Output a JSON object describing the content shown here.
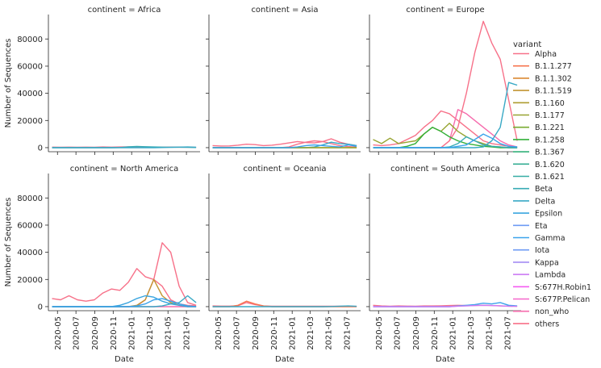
{
  "chart_data": {
    "type": "line",
    "facet_label_prefix": "continent = ",
    "facets": [
      "Africa",
      "Asia",
      "Europe",
      "North America",
      "Oceania",
      "South America"
    ],
    "xlabel": "Date",
    "ylabel": "Number of Sequences",
    "x_ticks": [
      "2020-05",
      "2020-07",
      "2020-09",
      "2020-11",
      "2021-01",
      "2021-03",
      "2021-05",
      "2021-07"
    ],
    "y_ticks": [
      0,
      20000,
      40000,
      60000,
      80000
    ],
    "ylim": [
      -3000,
      98000
    ],
    "x": [
      "2020-04-13",
      "2020-05-11",
      "2020-06-08",
      "2020-07-06",
      "2020-08-03",
      "2020-08-31",
      "2020-09-28",
      "2020-10-26",
      "2020-11-23",
      "2020-12-21",
      "2021-01-18",
      "2021-02-15",
      "2021-03-15",
      "2021-04-12",
      "2021-05-10",
      "2021-06-07",
      "2021-07-05",
      "2021-08-02"
    ],
    "legend_title": "variant",
    "legend_placement": "right",
    "variants": [
      {
        "name": "Alpha",
        "color": "#f77189"
      },
      {
        "name": "B.1.1.277",
        "color": "#f7754f"
      },
      {
        "name": "B.1.1.302",
        "color": "#dc8932"
      },
      {
        "name": "B.1.1.519",
        "color": "#c39532"
      },
      {
        "name": "B.1.160",
        "color": "#ae9d31"
      },
      {
        "name": "B.1.177",
        "color": "#97a431"
      },
      {
        "name": "B.1.221",
        "color": "#77ab31"
      },
      {
        "name": "B.1.258",
        "color": "#33b039"
      },
      {
        "name": "B.1.367",
        "color": "#33b07a"
      },
      {
        "name": "B.1.620",
        "color": "#35ae93"
      },
      {
        "name": "B.1.621",
        "color": "#36ada4"
      },
      {
        "name": "Beta",
        "color": "#37abb4"
      },
      {
        "name": "Delta",
        "color": "#38a9c5"
      },
      {
        "name": "Epsilon",
        "color": "#3aa5df"
      },
      {
        "name": "Eta",
        "color": "#6e9bf4"
      },
      {
        "name": "Gamma",
        "color": "#3ba3ec"
      },
      {
        "name": "Iota",
        "color": "#6e9bf4"
      },
      {
        "name": "Kappa",
        "color": "#a48cf4"
      },
      {
        "name": "Lambda",
        "color": "#cc7af4"
      },
      {
        "name": "S:677H.Robin1",
        "color": "#f45cf2"
      },
      {
        "name": "S:677P.Pelican",
        "color": "#f565cc"
      },
      {
        "name": "non_who",
        "color": "#f66bad"
      },
      {
        "name": "others",
        "color": "#f77189"
      }
    ],
    "series": [
      {
        "facet": "Africa",
        "variant": "others",
        "values": [
          400,
          300,
          400,
          300,
          400,
          300,
          500,
          400,
          500,
          600,
          400,
          500,
          400,
          300,
          400,
          300,
          300,
          200
        ]
      },
      {
        "facet": "Africa",
        "variant": "Beta",
        "values": [
          0,
          0,
          0,
          0,
          0,
          0,
          0,
          0,
          100,
          600,
          900,
          700,
          500,
          400,
          300,
          300,
          200,
          100
        ]
      },
      {
        "facet": "Africa",
        "variant": "Delta",
        "values": [
          0,
          0,
          0,
          0,
          0,
          0,
          0,
          0,
          0,
          0,
          0,
          0,
          0,
          100,
          200,
          400,
          500,
          300
        ]
      },
      {
        "facet": "Asia",
        "variant": "others",
        "values": [
          1500,
          1200,
          1300,
          1800,
          2500,
          2200,
          1500,
          1800,
          2500,
          3500,
          4500,
          3800,
          3500,
          4500,
          6500,
          4000,
          2500,
          1500
        ]
      },
      {
        "facet": "Asia",
        "variant": "Alpha",
        "values": [
          0,
          0,
          0,
          0,
          0,
          0,
          0,
          0,
          0,
          500,
          2500,
          4000,
          5000,
          4500,
          3000,
          1500,
          800,
          400
        ]
      },
      {
        "facet": "Asia",
        "variant": "B.1.1.519",
        "values": [
          0,
          0,
          0,
          0,
          0,
          0,
          0,
          0,
          0,
          0,
          0,
          0,
          0,
          0,
          0,
          0,
          0,
          0
        ]
      },
      {
        "facet": "Asia",
        "variant": "Delta",
        "values": [
          0,
          0,
          0,
          0,
          0,
          0,
          0,
          0,
          0,
          0,
          0,
          0,
          500,
          2000,
          4000,
          3000,
          2500,
          1500
        ]
      },
      {
        "facet": "Asia",
        "variant": "B.1.177",
        "values": [
          0,
          0,
          0,
          0,
          0,
          0,
          0,
          0,
          0,
          0,
          0,
          0,
          0,
          0,
          0,
          0,
          0,
          0
        ]
      },
      {
        "facet": "Asia",
        "variant": "Gamma",
        "values": [
          0,
          0,
          0,
          0,
          0,
          0,
          0,
          0,
          0,
          0,
          500,
          1500,
          2000,
          1500,
          1000,
          500,
          2000,
          1000
        ]
      },
      {
        "facet": "Europe",
        "variant": "others",
        "values": [
          2000,
          1500,
          2000,
          3000,
          6000,
          9000,
          15000,
          20000,
          27000,
          25000,
          20000,
          15000,
          10000,
          5000,
          3000,
          2000,
          1000,
          500
        ]
      },
      {
        "facet": "Europe",
        "variant": "non_who",
        "values": [
          0,
          0,
          0,
          0,
          0,
          0,
          0,
          0,
          0,
          5000,
          28000,
          25000,
          20000,
          15000,
          10000,
          5000,
          2000,
          500
        ]
      },
      {
        "facet": "Europe",
        "variant": "Alpha",
        "values": [
          0,
          0,
          0,
          0,
          0,
          0,
          0,
          0,
          0,
          5000,
          15000,
          40000,
          70000,
          93000,
          77000,
          65000,
          35000,
          5000
        ]
      },
      {
        "facet": "Europe",
        "variant": "B.1.177",
        "values": [
          6000,
          3000,
          7000,
          3000,
          4000,
          5000,
          10000,
          15000,
          12000,
          18000,
          12000,
          8000,
          5000,
          3000,
          1000,
          500,
          0,
          0
        ]
      },
      {
        "facet": "Europe",
        "variant": "B.1.258",
        "values": [
          0,
          0,
          0,
          0,
          1000,
          3000,
          10000,
          15000,
          12000,
          8000,
          5000,
          3000,
          2000,
          1000,
          500,
          0,
          0,
          0
        ]
      },
      {
        "facet": "Europe",
        "variant": "Delta",
        "values": [
          0,
          0,
          0,
          0,
          0,
          0,
          0,
          0,
          0,
          0,
          0,
          0,
          0,
          500,
          5000,
          15000,
          48000,
          46000
        ]
      },
      {
        "facet": "Europe",
        "variant": "Beta",
        "values": [
          0,
          0,
          0,
          0,
          0,
          0,
          0,
          0,
          0,
          500,
          3000,
          8000,
          5000,
          2000,
          1000,
          500,
          0,
          0
        ]
      },
      {
        "facet": "Europe",
        "variant": "Gamma",
        "values": [
          0,
          0,
          0,
          0,
          0,
          0,
          0,
          0,
          0,
          0,
          1000,
          2000,
          6000,
          10000,
          7000,
          3000,
          1000,
          500
        ]
      },
      {
        "facet": "North America",
        "variant": "others",
        "values": [
          6000,
          5000,
          8000,
          5000,
          4000,
          5000,
          10000,
          13000,
          12000,
          18000,
          28000,
          22000,
          20000,
          15000,
          5000,
          2000,
          1000,
          500
        ]
      },
      {
        "facet": "North America",
        "variant": "non_who",
        "values": [
          0,
          0,
          0,
          0,
          0,
          0,
          0,
          0,
          0,
          0,
          0,
          0,
          0,
          0,
          0,
          0,
          0,
          0
        ]
      },
      {
        "facet": "North America",
        "variant": "Alpha",
        "values": [
          0,
          0,
          0,
          0,
          0,
          0,
          0,
          0,
          0,
          0,
          500,
          5000,
          20000,
          47000,
          40000,
          15000,
          3000,
          1000
        ]
      },
      {
        "facet": "North America",
        "variant": "B.1.1.519",
        "values": [
          0,
          0,
          0,
          0,
          0,
          0,
          0,
          0,
          0,
          0,
          1000,
          5000,
          20000,
          8000,
          3000,
          1000,
          0,
          0
        ]
      },
      {
        "facet": "North America",
        "variant": "Epsilon",
        "values": [
          0,
          0,
          0,
          0,
          0,
          0,
          0,
          0,
          1000,
          3000,
          6000,
          8000,
          7000,
          4000,
          2000,
          1000,
          0,
          0
        ]
      },
      {
        "facet": "North America",
        "variant": "Delta",
        "values": [
          0,
          0,
          0,
          0,
          0,
          0,
          0,
          0,
          0,
          0,
          0,
          0,
          0,
          500,
          2000,
          3000,
          8000,
          3000
        ]
      },
      {
        "facet": "North America",
        "variant": "Gamma",
        "values": [
          0,
          0,
          0,
          0,
          0,
          0,
          0,
          0,
          0,
          0,
          500,
          2000,
          5000,
          6000,
          4000,
          2000,
          500,
          0
        ]
      },
      {
        "facet": "Oceania",
        "variant": "others",
        "values": [
          500,
          400,
          400,
          600,
          3000,
          1500,
          500,
          300,
          300,
          300,
          300,
          300,
          300,
          300,
          300,
          300,
          300,
          200
        ]
      },
      {
        "facet": "Oceania",
        "variant": "B.1.1.277",
        "values": [
          0,
          0,
          0,
          1000,
          4000,
          2000,
          500,
          0,
          0,
          0,
          0,
          0,
          0,
          0,
          0,
          0,
          0,
          0
        ]
      },
      {
        "facet": "Oceania",
        "variant": "Delta",
        "values": [
          0,
          0,
          0,
          0,
          0,
          0,
          0,
          0,
          0,
          0,
          0,
          0,
          0,
          0,
          100,
          300,
          500,
          200
        ]
      },
      {
        "facet": "South America",
        "variant": "others",
        "values": [
          1000,
          500,
          300,
          500,
          400,
          300,
          500,
          500,
          600,
          800,
          1000,
          800,
          800,
          1000,
          800,
          500,
          300,
          200
        ]
      },
      {
        "facet": "South America",
        "variant": "Gamma",
        "values": [
          0,
          0,
          0,
          0,
          0,
          0,
          0,
          0,
          0,
          0,
          500,
          1000,
          1500,
          2500,
          2000,
          3000,
          1000,
          500
        ]
      },
      {
        "facet": "South America",
        "variant": "Lambda",
        "values": [
          0,
          0,
          0,
          0,
          0,
          0,
          0,
          0,
          0,
          0,
          300,
          500,
          800,
          1000,
          800,
          600,
          300,
          200
        ]
      }
    ]
  }
}
